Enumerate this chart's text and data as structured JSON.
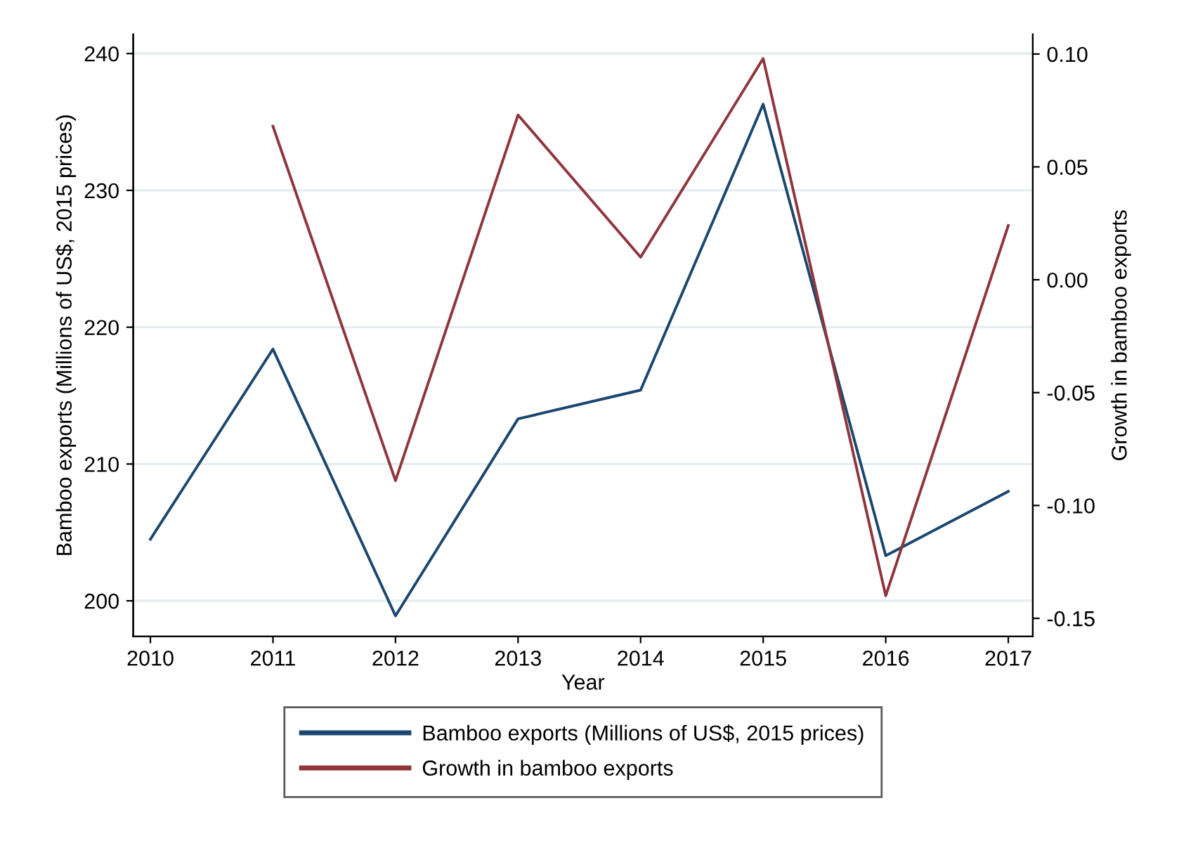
{
  "chart_data": {
    "type": "line",
    "xlabel": "Year",
    "ylabel": "Bamboo exports (Millions of US$, 2015 prices)",
    "y2label": "Growth in bamboo exports",
    "x": [
      2010,
      2011,
      2012,
      2013,
      2014,
      2015,
      2016,
      2017
    ],
    "xlim": [
      2009.86,
      2017.2
    ],
    "xticks": [
      2010,
      2011,
      2012,
      2013,
      2014,
      2015,
      2016,
      2017
    ],
    "ylim": [
      197.4,
      241.4
    ],
    "yticks": [
      200,
      210,
      220,
      230,
      240
    ],
    "y2lim": [
      -0.158,
      0.1087
    ],
    "y2ticks": [
      {
        "value": -0.15,
        "label": "-0.15"
      },
      {
        "value": -0.1,
        "label": "-0.10"
      },
      {
        "value": -0.05,
        "label": "-0.05"
      },
      {
        "value": 0,
        "label": "0.00"
      },
      {
        "value": 0.05,
        "label": "0.05"
      },
      {
        "value": 0.1,
        "label": "0.10"
      }
    ],
    "grid": "y",
    "legend": "bottom",
    "series": [
      {
        "name": "Bamboo exports (Millions of US$, 2015 prices)",
        "color": "#1a476f",
        "values": [
          204.5,
          218.4,
          198.9,
          213.3,
          215.4,
          236.3,
          203.3,
          208.0
        ]
      },
      {
        "name": "Growth in bamboo exports",
        "color": "#90353b",
        "axis": "y2",
        "values": [
          null,
          0.068,
          -0.089,
          0.073,
          0.01,
          0.098,
          -0.14,
          0.024
        ]
      }
    ]
  }
}
